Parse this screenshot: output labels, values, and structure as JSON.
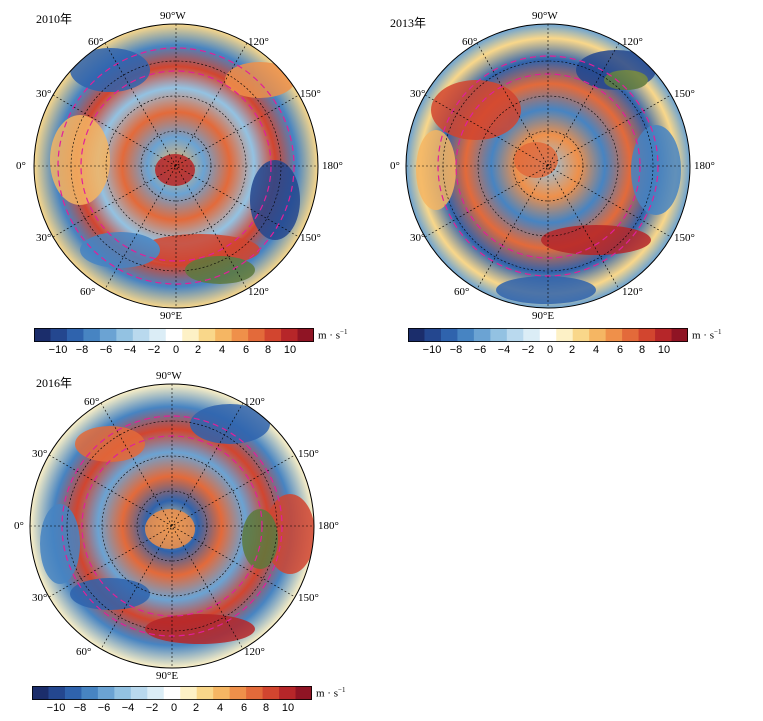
{
  "panels": [
    {
      "title": "2010年"
    },
    {
      "title": "2013年"
    },
    {
      "title": "2016年"
    }
  ],
  "map_labels": {
    "top": "90°W",
    "bottom": "90°E",
    "left": "0°",
    "right": "180°",
    "upper_left": "60°",
    "upper_right": "120°",
    "left_upper": "30°",
    "right_upper": "150°",
    "left_lower": "30°",
    "right_lower": "150°",
    "lower_left": "60°",
    "lower_right": "120°"
  },
  "colorbar": {
    "ticks": [
      "−10",
      "−8",
      "−6",
      "−4",
      "−2",
      "0",
      "2",
      "4",
      "6",
      "8",
      "10"
    ],
    "unit": "m · s",
    "unit_exp": "−1",
    "colors": [
      "#1b2d6b",
      "#24478f",
      "#2f63ad",
      "#4784c2",
      "#6ba3d3",
      "#93c2e2",
      "#b9d9ee",
      "#dbedf6",
      "#ffffff",
      "#fdf1c6",
      "#f9d78a",
      "#f5b663",
      "#ef904a",
      "#e36a3a",
      "#d2452f",
      "#b62629",
      "#8f1424"
    ]
  }
}
